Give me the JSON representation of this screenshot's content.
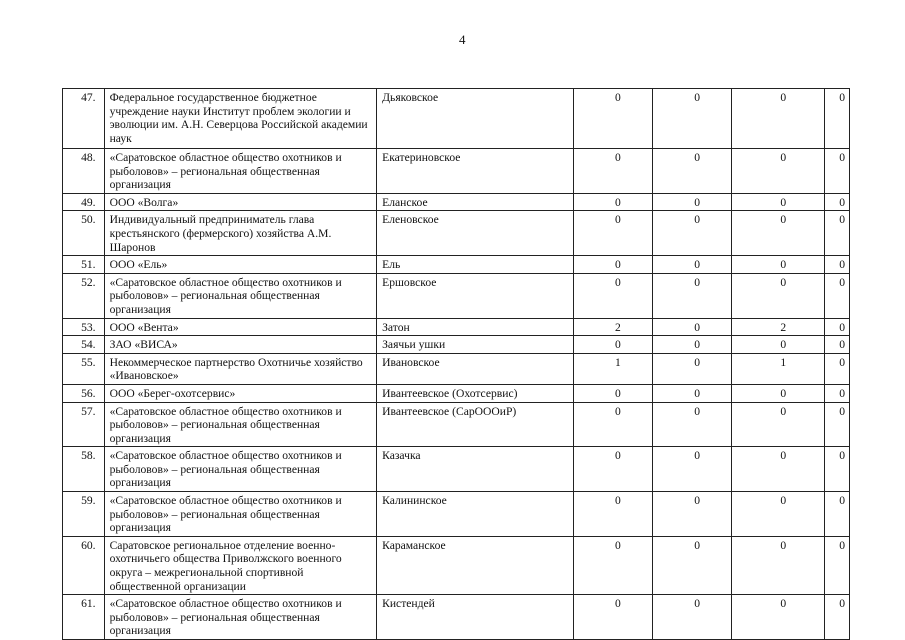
{
  "page_number": "4",
  "rows": [
    {
      "num": "47.",
      "org": "Федеральное государственное бюджетное учреждение науки Институт проблем экологии и эволюции им. А.Н. Северцова Российской академии наук",
      "area": "Дьяковское",
      "v": [
        "0",
        "0",
        "0",
        "0"
      ]
    },
    {
      "num": "48.",
      "org": "«Саратовское областное общество охотников и рыболовов» – региональная общественная организация",
      "area": "Екатериновское",
      "v": [
        "0",
        "0",
        "0",
        "0"
      ]
    },
    {
      "num": "49.",
      "org": "ООО «Волга»",
      "area": "Еланское",
      "v": [
        "0",
        "0",
        "0",
        "0"
      ]
    },
    {
      "num": "50.",
      "org": "Индивидуальный предприниматель глава крестьянского (фермерского) хозяйства А.М. Шаронов",
      "area": "Еленовское",
      "v": [
        "0",
        "0",
        "0",
        "0"
      ]
    },
    {
      "num": "51.",
      "org": "ООО «Ель»",
      "area": "Ель",
      "v": [
        "0",
        "0",
        "0",
        "0"
      ]
    },
    {
      "num": "52.",
      "org": "«Саратовское областное общество охотников и рыболовов» – региональная общественная организация",
      "area": "Ершовское",
      "v": [
        "0",
        "0",
        "0",
        "0"
      ]
    },
    {
      "num": "53.",
      "org": "ООО «Вента»",
      "area": "Затон",
      "v": [
        "2",
        "0",
        "2",
        "0"
      ]
    },
    {
      "num": "54.",
      "org": "ЗАО «ВИСА»",
      "area": "Заячьи ушки",
      "v": [
        "0",
        "0",
        "0",
        "0"
      ]
    },
    {
      "num": "55.",
      "org": "Некоммерческое партнерство Охотничье хозяйство «Ивановское»",
      "area": "Ивановское",
      "v": [
        "1",
        "0",
        "1",
        "0"
      ]
    },
    {
      "num": "56.",
      "org": "ООО «Берег-охотсервис»",
      "area": "Ивантеевское (Охотсервис)",
      "v": [
        "0",
        "0",
        "0",
        "0"
      ]
    },
    {
      "num": "57.",
      "org": "«Саратовское областное общество охотников и рыболовов» – региональная общественная организация",
      "area": "Ивантеевское (СарОООиР)",
      "v": [
        "0",
        "0",
        "0",
        "0"
      ]
    },
    {
      "num": "58.",
      "org": "«Саратовское областное общество охотников и рыболовов» – региональная общественная организация",
      "area": "Казачка",
      "v": [
        "0",
        "0",
        "0",
        "0"
      ]
    },
    {
      "num": "59.",
      "org": "«Саратовское областное общество охотников и рыболовов» – региональная общественная организация",
      "area": "Калининское",
      "v": [
        "0",
        "0",
        "0",
        "0"
      ]
    },
    {
      "num": "60.",
      "org": "Саратовское региональное отделение военно-охотничьего общества Приволжского военного округа – межрегиональной спортивной общественной организации",
      "area": "Караманское",
      "v": [
        "0",
        "0",
        "0",
        "0"
      ]
    },
    {
      "num": "61.",
      "org": "«Саратовское областное общество охотников и рыболовов» – региональная общественная организация",
      "area": "Кистендей",
      "v": [
        "0",
        "0",
        "0",
        "0"
      ]
    }
  ]
}
